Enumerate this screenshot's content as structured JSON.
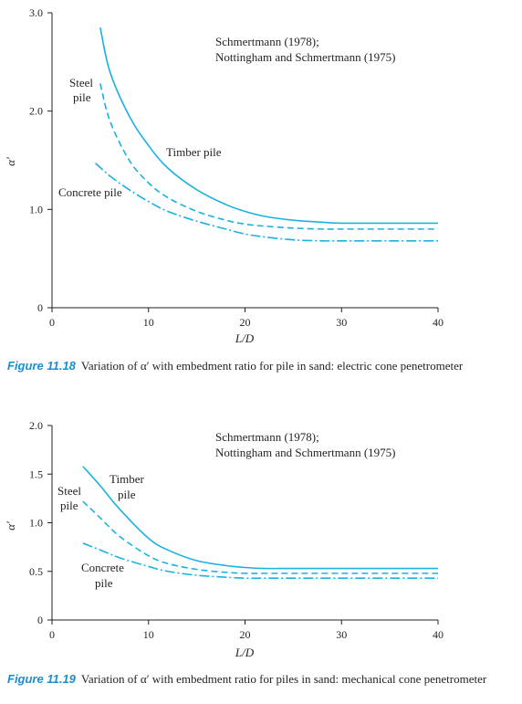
{
  "figures": [
    {
      "caption_label": "Figure 11.18",
      "caption_text": "Variation of α′ with embedment ratio for pile in sand: electric cone penetrometer"
    },
    {
      "caption_label": "Figure 11.19",
      "caption_text": "Variation of α′ with embedment ratio for piles in sand: mechanical cone penetrometer"
    }
  ],
  "chart_data": [
    {
      "type": "line",
      "xlabel": "L/D",
      "ylabel": "α′",
      "xlim": [
        0,
        40
      ],
      "ylim": [
        0,
        3.0
      ],
      "xticks": [
        "0",
        "10",
        "20",
        "30",
        "40"
      ],
      "yticks": [
        "0",
        "1.0",
        "2.0",
        "3.0"
      ],
      "source_note": [
        "Schmertmann (1978);",
        "Nottingham and Schmertmann (1975)"
      ],
      "color": "#1ab2e0",
      "series": [
        {
          "name": "Timber pile",
          "style": "solid",
          "x": [
            5,
            6,
            8,
            10,
            12,
            15,
            18,
            20,
            22,
            25,
            28,
            30,
            35,
            40
          ],
          "y": [
            2.85,
            2.4,
            1.95,
            1.65,
            1.42,
            1.2,
            1.05,
            0.98,
            0.93,
            0.89,
            0.87,
            0.86,
            0.86,
            0.86
          ]
        },
        {
          "name": "Steel pile",
          "style": "dashed",
          "x": [
            5,
            6,
            8,
            10,
            12,
            15,
            18,
            20,
            22,
            25,
            28,
            30,
            35,
            40
          ],
          "y": [
            2.28,
            1.9,
            1.5,
            1.27,
            1.12,
            0.98,
            0.89,
            0.85,
            0.83,
            0.81,
            0.8,
            0.8,
            0.8,
            0.8
          ]
        },
        {
          "name": "Concrete pile",
          "style": "dashdot",
          "x": [
            4.5,
            6,
            8,
            10,
            12,
            15,
            18,
            20,
            22,
            25,
            28,
            30,
            35,
            40
          ],
          "y": [
            1.47,
            1.34,
            1.2,
            1.08,
            0.98,
            0.88,
            0.8,
            0.75,
            0.72,
            0.69,
            0.68,
            0.68,
            0.68,
            0.68
          ]
        }
      ],
      "labels": {
        "timber": "Timber pile",
        "steel_1": "Steel",
        "steel_2": "pile",
        "concrete": "Concrete pile"
      }
    },
    {
      "type": "line",
      "xlabel": "L/D",
      "ylabel": "α′",
      "xlim": [
        0,
        40
      ],
      "ylim": [
        0,
        2.0
      ],
      "xticks": [
        "0",
        "10",
        "20",
        "30",
        "40"
      ],
      "yticks": [
        "0",
        "0.5",
        "1.0",
        "1.5",
        "2.0"
      ],
      "source_note": [
        "Schmertmann (1978);",
        "Nottingham and Schmertmann (1975)"
      ],
      "color": "#1ab2e0",
      "series": [
        {
          "name": "Timber pile",
          "style": "solid",
          "x": [
            3.2,
            5,
            7,
            10,
            12,
            15,
            18,
            20,
            22,
            25,
            30,
            35,
            40
          ],
          "y": [
            1.58,
            1.38,
            1.14,
            0.84,
            0.72,
            0.61,
            0.56,
            0.54,
            0.53,
            0.53,
            0.53,
            0.53,
            0.53
          ]
        },
        {
          "name": "Steel pile",
          "style": "dashed",
          "x": [
            3.2,
            5,
            7,
            10,
            12,
            15,
            18,
            20,
            22,
            25,
            30,
            35,
            40
          ],
          "y": [
            1.22,
            1.05,
            0.86,
            0.66,
            0.58,
            0.52,
            0.49,
            0.48,
            0.48,
            0.48,
            0.48,
            0.48,
            0.48
          ]
        },
        {
          "name": "Concrete pile",
          "style": "dashdot",
          "x": [
            3.2,
            5,
            7,
            10,
            12,
            15,
            18,
            20,
            22,
            25,
            30,
            35,
            40
          ],
          "y": [
            0.79,
            0.72,
            0.64,
            0.55,
            0.5,
            0.46,
            0.44,
            0.43,
            0.43,
            0.43,
            0.43,
            0.43,
            0.43
          ]
        }
      ],
      "labels": {
        "timber_1": "Timber",
        "timber_2": "pile",
        "steel_1": "Steel",
        "steel_2": "pile",
        "concrete_1": "Concrete",
        "concrete_2": "pile"
      }
    }
  ]
}
